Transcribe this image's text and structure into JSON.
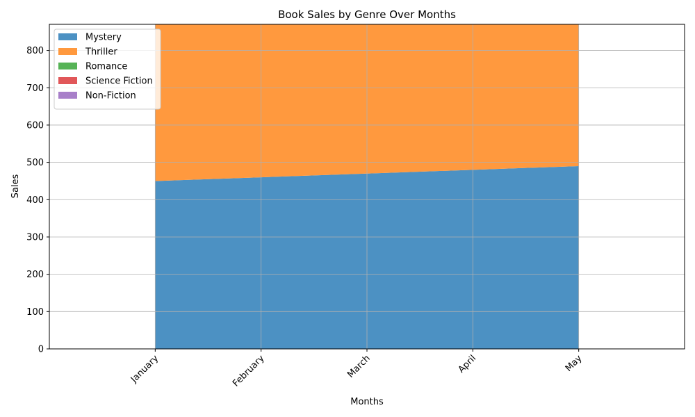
{
  "chart_data": {
    "type": "area",
    "stacked": true,
    "title": "Book Sales by Genre Over Months",
    "xlabel": "Months",
    "ylabel": "Sales",
    "categories": [
      "January",
      "February",
      "March",
      "April",
      "May"
    ],
    "xlim": [
      -1,
      5
    ],
    "ylim": [
      0,
      870
    ],
    "yticks": [
      0,
      100,
      200,
      300,
      400,
      500,
      600,
      700,
      800
    ],
    "grid": true,
    "legend_position": "upper-left",
    "series": [
      {
        "name": "Mystery",
        "color": "#4c91c3",
        "values": [
          450,
          460,
          470,
          480,
          490
        ]
      },
      {
        "name": "Thriller",
        "color": "#ff993e",
        "values": [
          420,
          410,
          400,
          390,
          380
        ]
      },
      {
        "name": "Romance",
        "color": "#56b356",
        "values": [
          0,
          0,
          0,
          0,
          0
        ]
      },
      {
        "name": "Science Fiction",
        "color": "#e15759",
        "values": [
          0,
          0,
          0,
          0,
          0
        ]
      },
      {
        "name": "Non-Fiction",
        "color": "#a87fc9",
        "values": [
          0,
          0,
          0,
          0,
          0
        ]
      }
    ]
  }
}
